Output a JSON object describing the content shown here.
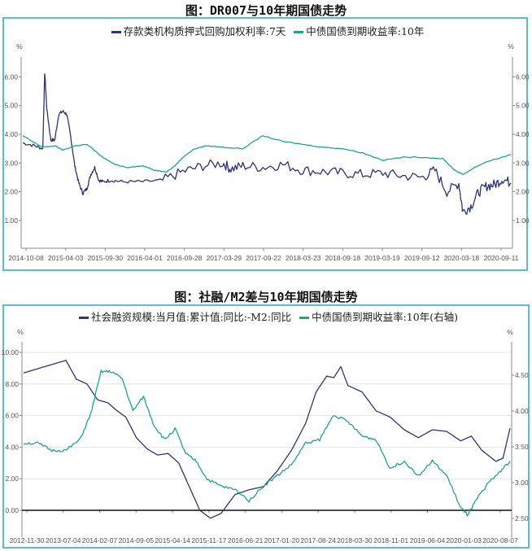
{
  "colors": {
    "frame": "#5bbcd6",
    "navy": "#2e3478",
    "teal": "#1fa58a",
    "axis": "#888888",
    "grid": "#e4e4e4",
    "zero": "#111111"
  },
  "chart_data": [
    {
      "type": "line",
      "title": "图：DR007与10年期国债走势",
      "xlabel": "",
      "ylabel": "%",
      "ylabel_right": "%",
      "grid": false,
      "legend_position": "top",
      "ylim": [
        0.3,
        6.6
      ],
      "yticks": [
        "6.00",
        "5.00",
        "4.00",
        "3.00",
        "2.00",
        "1.00"
      ],
      "yticks_right": [
        "6.00",
        "5.00",
        "4.00",
        "3.00",
        "2.00",
        "1.00"
      ],
      "x_tick_labels": [
        "2014-10-08",
        "2015-04-03",
        "2015-09-30",
        "2016-04-01",
        "2016-09-28",
        "2017-03-29",
        "2017-09-22",
        "2018-03-23",
        "2018-09-18",
        "2019-03-19",
        "2019-09-12",
        "2020-03-18",
        "2020-09-11"
      ],
      "series": [
        {
          "name": "存款类机构质押式回购加权利率:7天",
          "color": "#2e3478",
          "axis": "left",
          "x": [
            0,
            0.3,
            0.5,
            0.55,
            0.6,
            0.7,
            0.8,
            0.9,
            1.0,
            1.1,
            1.2,
            1.3,
            1.4,
            1.5,
            1.6,
            1.7,
            1.8,
            1.9,
            2.0,
            2.2,
            2.5,
            3.0,
            3.5,
            4.0,
            4.5,
            5.0,
            5.2,
            5.5,
            6.0,
            6.5,
            7.0,
            7.5,
            8.0,
            8.5,
            9.0,
            9.5,
            10.0,
            10.3,
            10.6,
            10.9,
            11.0,
            11.2,
            11.4,
            11.6,
            11.8,
            12.0,
            12.2
          ],
          "values": [
            3.7,
            3.6,
            3.5,
            6.15,
            4.9,
            3.8,
            3.8,
            4.7,
            4.8,
            4.7,
            3.9,
            2.9,
            2.3,
            1.95,
            2.1,
            2.6,
            2.85,
            2.4,
            2.35,
            2.4,
            2.35,
            2.35,
            2.4,
            2.7,
            2.9,
            3.0,
            2.8,
            2.9,
            2.85,
            2.95,
            2.75,
            2.7,
            2.65,
            2.6,
            2.65,
            2.55,
            2.5,
            2.75,
            2.0,
            2.3,
            1.3,
            1.5,
            2.0,
            2.2,
            2.25,
            2.45,
            2.3
          ]
        },
        {
          "name": "中债国债到期收益率:10年",
          "color": "#1fa58a",
          "axis": "left",
          "x": [
            0,
            0.3,
            0.5,
            0.8,
            1.0,
            1.3,
            1.6,
            2.0,
            2.3,
            2.6,
            3.0,
            3.3,
            3.6,
            3.8,
            4.0,
            4.3,
            4.6,
            5.0,
            5.5,
            6.0,
            6.5,
            7.0,
            7.5,
            8.0,
            8.5,
            9.0,
            9.5,
            10.0,
            10.5,
            10.8,
            11.0,
            11.3,
            11.6,
            12.0,
            12.2
          ],
          "values": [
            3.95,
            3.7,
            3.55,
            3.6,
            3.45,
            3.6,
            3.65,
            3.2,
            2.95,
            2.85,
            2.9,
            2.75,
            2.7,
            2.9,
            3.2,
            3.5,
            3.6,
            3.55,
            3.5,
            3.95,
            3.75,
            3.65,
            3.55,
            3.5,
            3.35,
            3.1,
            3.2,
            3.2,
            3.15,
            2.75,
            2.6,
            2.85,
            3.05,
            3.2,
            3.3
          ]
        }
      ]
    },
    {
      "type": "line",
      "title": "图：社融/M2差与10年期国债走势",
      "xlabel": "",
      "ylabel": "%",
      "ylabel_right": "%",
      "grid": true,
      "legend_position": "top",
      "ylim": [
        -0.8,
        10.2
      ],
      "ylim_right": [
        2.42,
        4.85
      ],
      "yticks": [
        "10.00",
        "8.00",
        "6.00",
        "4.00",
        "2.00",
        "0.00"
      ],
      "yticks_right": [
        "4.50",
        "4.00",
        "3.50",
        "3.00",
        "2.50"
      ],
      "x_tick_labels": [
        "2012-11-30",
        "2013-07-04",
        "2014-02-07",
        "2014-09-05",
        "2015-04-14",
        "2015-11-17",
        "2016-06-21",
        "2017-01-20",
        "2017-08-24",
        "2018-03-30",
        "2018-11-01",
        "2019-06-04",
        "2020-01-03",
        "2020-08-07"
      ],
      "series": [
        {
          "name": "社会融资规模:当月值:累计值:同比:-M2:同比",
          "color": "#2e3478",
          "axis": "left",
          "x": [
            0,
            0.3,
            0.6,
            0.9,
            1.2,
            1.5,
            1.8,
            2.1,
            2.4,
            2.6,
            2.9,
            3.2,
            3.5,
            3.8,
            4.1,
            4.4,
            4.7,
            5.0,
            5.3,
            5.6,
            6.0,
            6.4,
            6.8,
            7.2,
            7.6,
            8.0,
            8.3,
            8.6,
            8.8,
            9.0,
            9.2,
            9.6,
            10.0,
            10.4,
            10.8,
            11.2,
            11.6,
            12.0,
            12.4,
            12.7,
            13.0,
            13.4,
            13.6,
            13.8
          ],
          "values": [
            8.7,
            8.9,
            9.1,
            9.3,
            9.5,
            8.3,
            8.0,
            7.0,
            6.8,
            6.4,
            5.9,
            4.6,
            3.9,
            3.5,
            3.6,
            3.0,
            1.5,
            0.0,
            -0.5,
            -0.2,
            1.0,
            1.3,
            1.5,
            2.5,
            3.8,
            5.5,
            7.5,
            8.5,
            8.4,
            9.1,
            7.9,
            7.5,
            6.3,
            5.9,
            5.1,
            4.6,
            5.1,
            5.0,
            4.4,
            4.7,
            3.8,
            3.1,
            3.3,
            5.2
          ]
        },
        {
          "name": "中债国债到期收益率:10年(右轴)",
          "color": "#1fa58a",
          "axis": "right",
          "x": [
            0,
            0.4,
            0.8,
            1.2,
            1.6,
            1.9,
            2.2,
            2.5,
            2.8,
            3.1,
            3.4,
            3.7,
            4.0,
            4.3,
            4.6,
            4.9,
            5.2,
            5.6,
            6.0,
            6.4,
            6.8,
            7.2,
            7.6,
            8.0,
            8.4,
            8.8,
            9.2,
            9.6,
            10.0,
            10.4,
            10.8,
            11.2,
            11.6,
            12.0,
            12.4,
            12.6,
            12.9,
            13.2,
            13.5,
            13.8
          ],
          "values": [
            3.55,
            3.55,
            3.45,
            3.45,
            3.6,
            3.95,
            4.55,
            4.55,
            4.45,
            4.0,
            4.2,
            3.8,
            3.6,
            3.75,
            3.4,
            3.3,
            3.05,
            2.95,
            2.9,
            2.75,
            2.95,
            3.1,
            3.25,
            3.55,
            3.6,
            3.95,
            3.85,
            3.65,
            3.6,
            3.2,
            3.3,
            3.1,
            3.3,
            3.1,
            2.65,
            2.55,
            2.8,
            3.0,
            3.15,
            3.3
          ]
        }
      ]
    }
  ]
}
